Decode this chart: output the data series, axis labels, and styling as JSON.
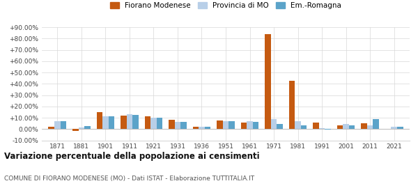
{
  "years": [
    1871,
    1881,
    1901,
    1911,
    1921,
    1931,
    1936,
    1951,
    1961,
    1971,
    1981,
    1991,
    2001,
    2011,
    2021
  ],
  "fiorano": [
    2.0,
    -1.5,
    15.0,
    12.0,
    11.5,
    8.0,
    2.0,
    7.5,
    5.5,
    84.0,
    43.0,
    5.5,
    3.0,
    5.0,
    0.5
  ],
  "provincia": [
    7.0,
    1.5,
    11.0,
    13.0,
    10.0,
    6.5,
    2.0,
    7.0,
    7.0,
    9.0,
    7.0,
    1.0,
    4.5,
    3.0,
    2.0
  ],
  "emilia": [
    7.0,
    2.5,
    11.5,
    12.5,
    10.0,
    6.5,
    2.0,
    7.0,
    6.5,
    4.5,
    3.0,
    -0.5,
    3.5,
    9.0,
    2.0
  ],
  "fiorano_color": "#c55a11",
  "provincia_color": "#b8cfe8",
  "emilia_color": "#5ba3c9",
  "title": "Variazione percentuale della popolazione ai censimenti",
  "subtitle": "COMUNE DI FIORANO MODENESE (MO) - Dati ISTAT - Elaborazione TUTTITALIA.IT",
  "legend_labels": [
    "Fiorano Modenese",
    "Provincia di MO",
    "Em.-Romagna"
  ],
  "ylim": [
    -10,
    90
  ],
  "yticks": [
    -10,
    0,
    10,
    20,
    30,
    40,
    50,
    60,
    70,
    80,
    90
  ],
  "ytick_labels": [
    "-10.00%",
    "0.00%",
    "+10.00%",
    "+20.00%",
    "+30.00%",
    "+40.00%",
    "+50.00%",
    "+60.00%",
    "+70.00%",
    "+80.00%",
    "+90.00%"
  ],
  "bar_width": 0.25,
  "background_color": "#ffffff",
  "grid_color": "#d8d8d8"
}
